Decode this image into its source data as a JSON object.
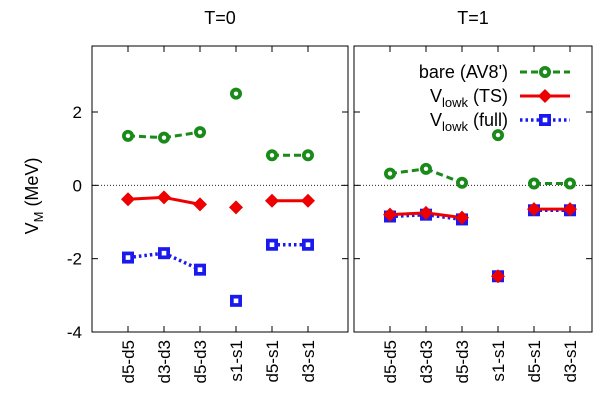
{
  "chart_data": {
    "type": "line",
    "ylabel": "V",
    "ylabel_sub": "M",
    "ylabel_unit": " (MeV)",
    "ylim": [
      -4,
      3.8
    ],
    "yticks": [
      -4,
      -2,
      0,
      2
    ],
    "categories": [
      "d5-d5",
      "d3-d3",
      "d5-d3",
      "s1-s1",
      "d5-s1",
      "d3-s1"
    ],
    "zero_line": true,
    "panels": [
      {
        "title": "T=0",
        "series": [
          {
            "key": "bare",
            "values": [
              1.35,
              1.3,
              1.45,
              2.5,
              0.82,
              0.82
            ]
          },
          {
            "key": "ts",
            "values": [
              -0.38,
              -0.33,
              -0.52,
              -0.6,
              -0.42,
              -0.42
            ]
          },
          {
            "key": "full",
            "values": [
              -1.97,
              -1.85,
              -2.3,
              -3.15,
              -1.62,
              -1.62
            ]
          }
        ]
      },
      {
        "title": "T=1",
        "series": [
          {
            "key": "bare",
            "values": [
              0.32,
              0.45,
              0.07,
              1.37,
              0.05,
              0.05
            ]
          },
          {
            "key": "ts",
            "values": [
              -0.8,
              -0.75,
              -0.88,
              -2.48,
              -0.65,
              -0.65
            ]
          },
          {
            "key": "full",
            "values": [
              -0.85,
              -0.8,
              -0.93,
              -2.48,
              -0.68,
              -0.68
            ]
          }
        ]
      }
    ],
    "legend": {
      "placement": "top-right",
      "entries": [
        {
          "key": "bare",
          "main": "bare (AV8')",
          "sub": "",
          "tail": ""
        },
        {
          "key": "ts",
          "main": "V",
          "sub": "lowk",
          "tail": " (TS)"
        },
        {
          "key": "full",
          "main": "V",
          "sub": "lowk",
          "tail": " (full)"
        }
      ]
    },
    "colors": {
      "bare": "#1a8a1a",
      "ts": "#ee0000",
      "full": "#1a1aee",
      "zero": "#000000"
    }
  }
}
